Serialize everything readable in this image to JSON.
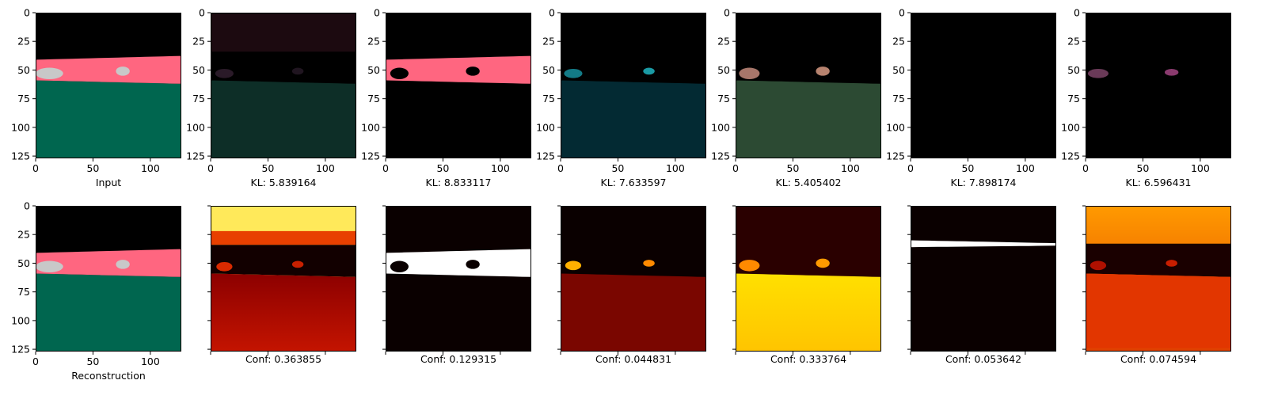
{
  "chart_data": {
    "type": "image-grid",
    "rows": 2,
    "columns": 7,
    "xlim": [
      0,
      127
    ],
    "ylim": [
      127,
      0
    ],
    "x_ticks": [
      0,
      50,
      100
    ],
    "y_ticks": [
      0,
      25,
      50,
      75,
      100,
      125
    ],
    "panels": [
      {
        "row": 0,
        "col": 0,
        "kind": "input",
        "caption": "Input"
      },
      {
        "row": 0,
        "col": 1,
        "kind": "reconstruction",
        "caption": "KL: 5.839164",
        "kl": 5.839164
      },
      {
        "row": 0,
        "col": 2,
        "kind": "reconstruction",
        "caption": "KL: 8.833117",
        "kl": 8.833117
      },
      {
        "row": 0,
        "col": 3,
        "kind": "reconstruction",
        "caption": "KL: 7.633597",
        "kl": 7.633597
      },
      {
        "row": 0,
        "col": 4,
        "kind": "reconstruction",
        "caption": "KL: 5.405402",
        "kl": 5.405402
      },
      {
        "row": 0,
        "col": 5,
        "kind": "reconstruction",
        "caption": "KL: 7.898174",
        "kl": 7.898174
      },
      {
        "row": 0,
        "col": 6,
        "kind": "reconstruction",
        "caption": "KL: 6.596431",
        "kl": 6.596431
      },
      {
        "row": 1,
        "col": 0,
        "kind": "reconstruction",
        "caption": "Reconstruction"
      },
      {
        "row": 1,
        "col": 1,
        "kind": "confidence",
        "caption": "Conf: 0.363855",
        "conf": 0.363855
      },
      {
        "row": 1,
        "col": 2,
        "kind": "confidence",
        "caption": "Conf: 0.129315",
        "conf": 0.129315
      },
      {
        "row": 1,
        "col": 3,
        "kind": "confidence",
        "caption": "Conf: 0.044831",
        "conf": 0.044831
      },
      {
        "row": 1,
        "col": 4,
        "kind": "confidence",
        "caption": "Conf: 0.333764",
        "conf": 0.333764
      },
      {
        "row": 1,
        "col": 5,
        "kind": "confidence",
        "caption": "Conf: 0.053642",
        "conf": 0.053642
      },
      {
        "row": 1,
        "col": 6,
        "kind": "confidence",
        "caption": "Conf: 0.074594",
        "conf": 0.074594
      }
    ],
    "colors": {
      "sky": "#000000",
      "road": "#ff6680",
      "grass": "#00664f",
      "car": "#c8c8c8",
      "heatmap": [
        "#000000",
        "#6e0000",
        "#c81e00",
        "#ff6a00",
        "#ffc800",
        "#ffffff"
      ]
    }
  }
}
